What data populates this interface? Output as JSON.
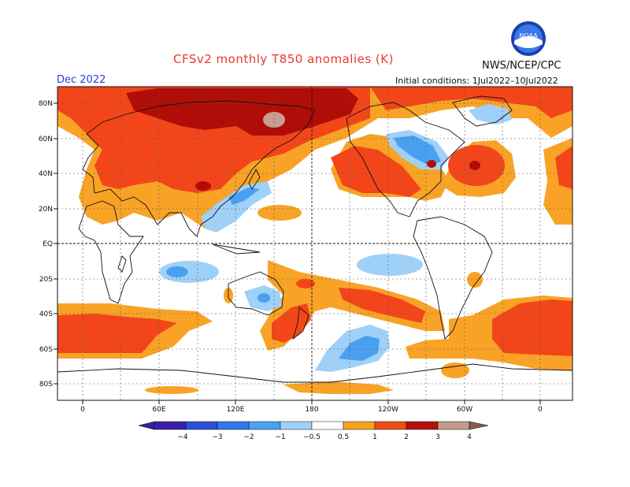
{
  "title": "CFSv2 monthly T850 anomalies (K)",
  "agency": "NWS/NCEP/CPC",
  "logo_text": "NOAA",
  "month": "Dec 2022",
  "initial_conditions": "Initial conditions: 1Jul2022–10Jul2022",
  "lat_labels": [
    "80N",
    "60N",
    "40N",
    "20N",
    "EQ",
    "20S",
    "40S",
    "60S",
    "80S"
  ],
  "lon_labels": [
    "0",
    "60E",
    "120E",
    "180",
    "120W",
    "60W",
    "0"
  ],
  "colorbar": {
    "labels": [
      "−4",
      "−3",
      "−2",
      "−1",
      "−0.5",
      "0.5",
      "1",
      "2",
      "3",
      "4"
    ],
    "colors": [
      "#3b1fa8",
      "#2a4fd6",
      "#2f79e8",
      "#4aa0f0",
      "#9fd0f8",
      "#ffffff",
      "#f6a320",
      "#f04b16",
      "#b3100a",
      "#c49a8a",
      "#8a5a4a"
    ]
  },
  "colors": {
    "c05": "#f8a326",
    "c1": "#f2461a",
    "c2": "#b00d09",
    "c3": "#c79f90",
    "n05": "#9fd0f8",
    "n1": "#4aa0f0"
  }
}
